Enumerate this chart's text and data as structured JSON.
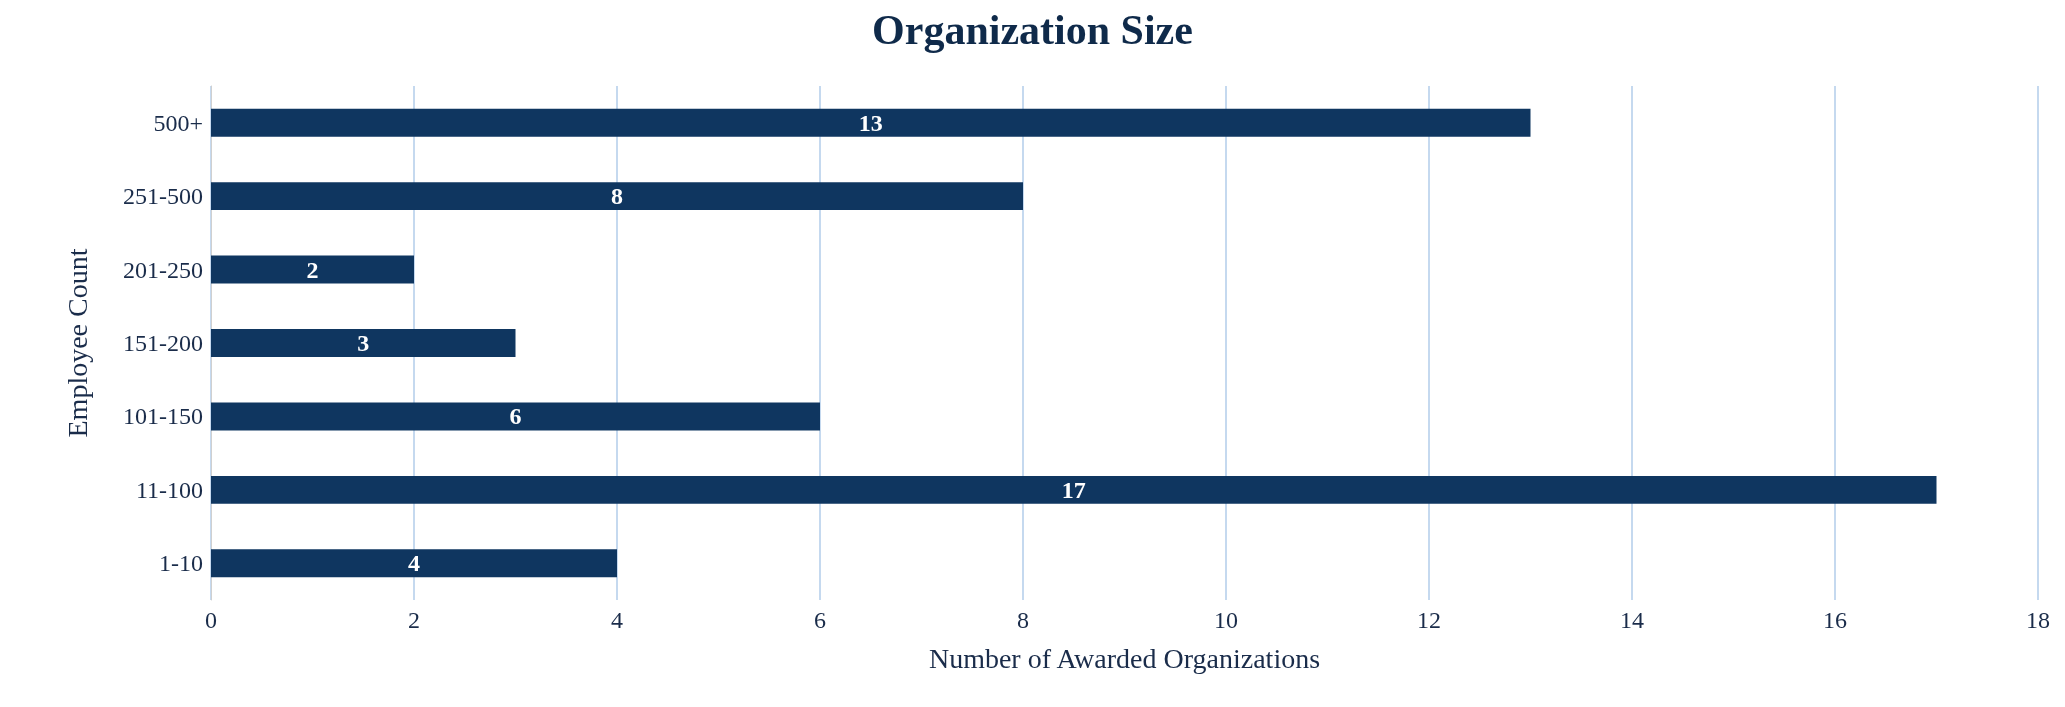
{
  "chart_data": {
    "type": "bar",
    "title": "Organization Size",
    "orientation": "horizontal",
    "xlabel": "Number of Awarded Organizations",
    "ylabel": "Employee Count",
    "categories": [
      "500+",
      "251-500",
      "201-250",
      "151-200",
      "101-150",
      "11-100",
      "1-10"
    ],
    "values": [
      13,
      8,
      2,
      3,
      6,
      17,
      4
    ],
    "color": "#0f3660",
    "xlim": [
      0,
      18
    ],
    "xticks": [
      0,
      2,
      4,
      6,
      8,
      10,
      12,
      14,
      16,
      18
    ],
    "grid": "x",
    "data_labels": true
  }
}
